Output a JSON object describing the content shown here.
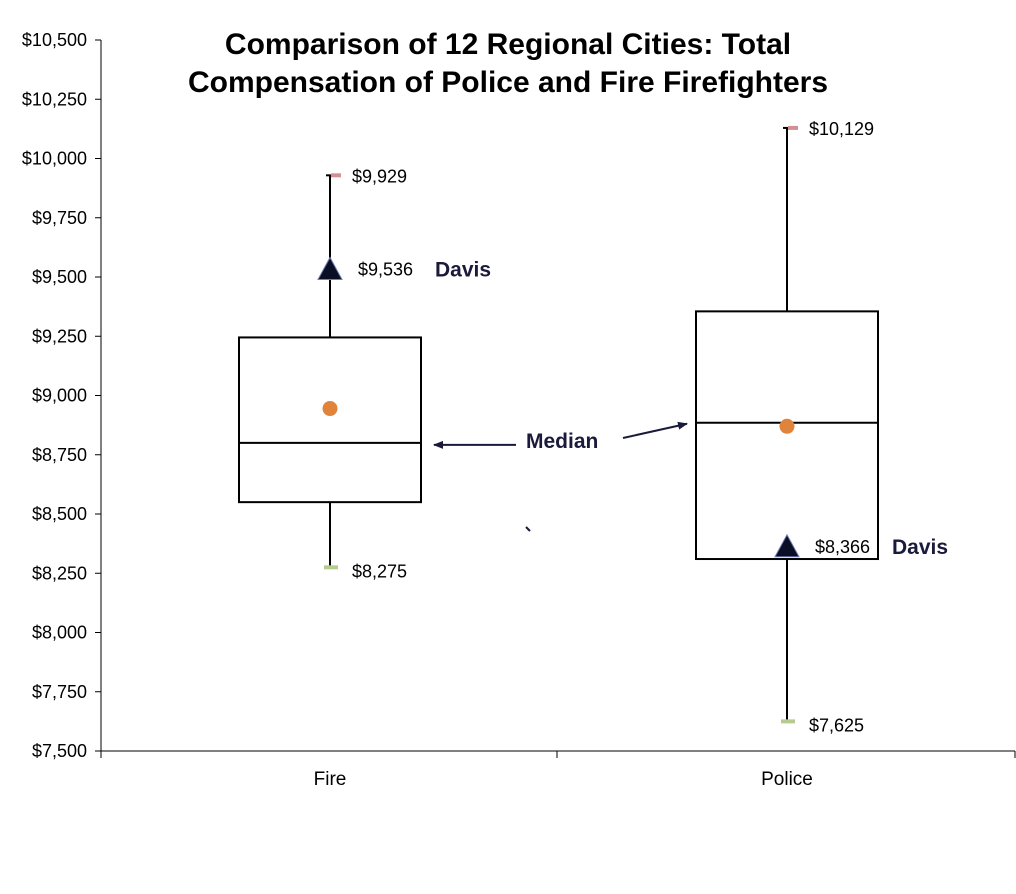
{
  "chart_data": {
    "type": "box",
    "title_lines": [
      "Comparison of 12 Regional Cities: Total",
      "Compensation of Police and Fire Firefighters"
    ],
    "ylim": [
      7500,
      10500
    ],
    "y_ticks": [
      7500,
      7750,
      8000,
      8250,
      8500,
      8750,
      9000,
      9250,
      9500,
      9750,
      10000,
      10250,
      10500
    ],
    "y_tick_labels": [
      "$7,500",
      "$7,750",
      "$8,000",
      "$8,250",
      "$8,500",
      "$8,750",
      "$9,000",
      "$9,250",
      "$9,500",
      "$9,750",
      "$10,000",
      "$10,250",
      "$10,500"
    ],
    "categories": [
      "Fire",
      "Police"
    ],
    "boxes": [
      {
        "category": "Fire",
        "min": 8275,
        "q1": 8550,
        "median": 8800,
        "q3": 9245,
        "max": 9929,
        "mean": 8945,
        "min_label": "$8,275",
        "max_label": "$9,929",
        "davis": 9536,
        "davis_value_label": "$9,536",
        "davis_name": "Davis"
      },
      {
        "category": "Police",
        "min": 7625,
        "q1": 8310,
        "median": 8885,
        "q3": 9355,
        "max": 10129,
        "mean": 8870,
        "min_label": "$7,625",
        "max_label": "$10,129",
        "davis": 8366,
        "davis_value_label": "$8,366",
        "davis_name": "Davis"
      }
    ],
    "annotation": "Median",
    "colors": {
      "mean_marker": "#e0843c",
      "max_marker": "#d48e94",
      "min_marker": "#b5cc8e",
      "davis_marker": "#0a0f26",
      "arrow": "#1a1a3a"
    }
  }
}
